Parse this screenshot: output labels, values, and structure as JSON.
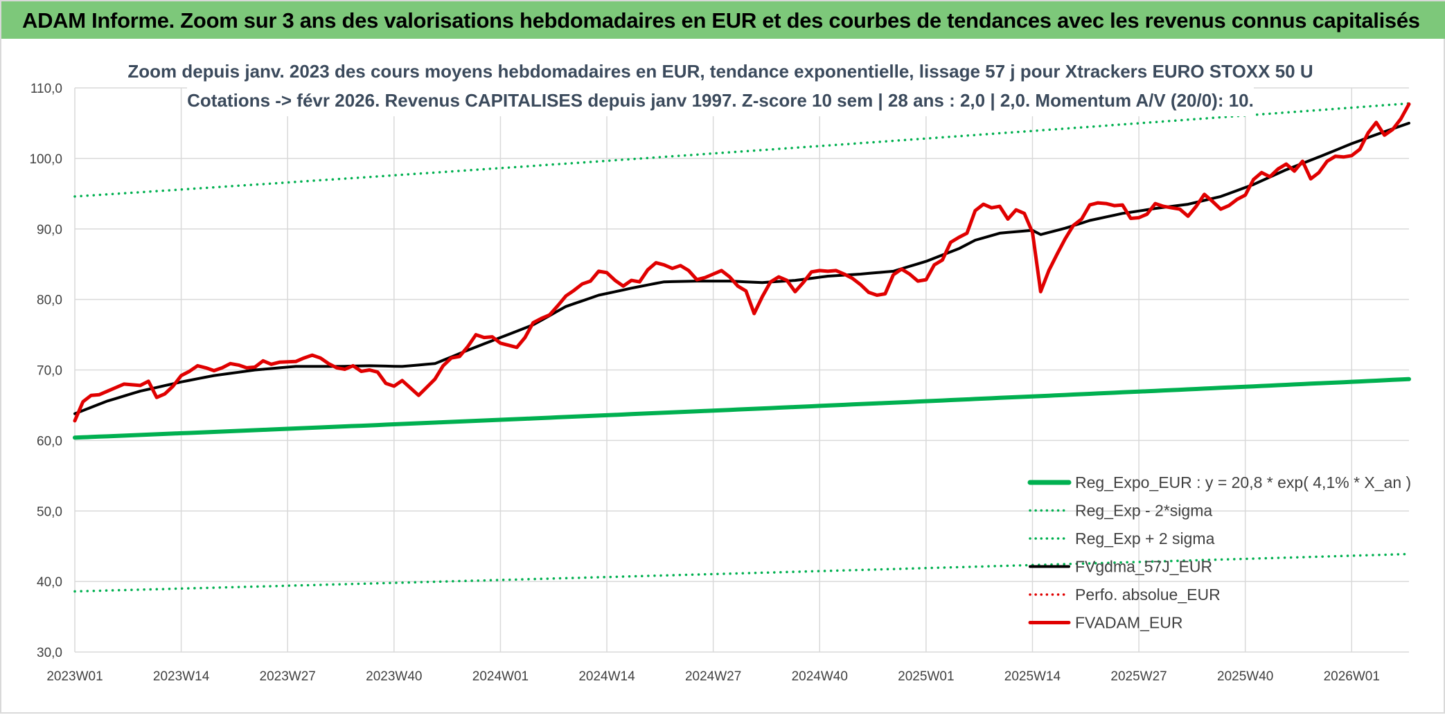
{
  "banner": {
    "title": "ADAM Informe. Zoom sur 3 ans des valorisations hebdomadaires en EUR et des courbes de tendances avec les revenus connus capitalisés"
  },
  "colors": {
    "banner_bg": "#7dc87a",
    "trend_green": "#00b050",
    "smooth_black": "#000000",
    "price_red": "#e00000",
    "grid": "#d9d9d9"
  },
  "chart_data": {
    "type": "line",
    "title_line1": "Zoom depuis janv. 2023 des cours moyens hebdomadaires en EUR, tendance exponentielle, lissage 57 j pour Xtrackers EURO STOXX 50 U",
    "title_line2": "Cotations -> févr 2026. Revenus CAPITALISES depuis janv 1997. Z-score 10 sem | 28 ans : 2,0 | 2,0. Momentum A/V (20/0): 10.",
    "ylim": [
      30,
      110
    ],
    "yticks": [
      30,
      40,
      50,
      60,
      70,
      80,
      90,
      100,
      110
    ],
    "ytick_labels": [
      "30,0",
      "40,0",
      "50,0",
      "60,0",
      "70,0",
      "80,0",
      "90,0",
      "100,0",
      "110,0"
    ],
    "x_count": 164,
    "xtick_index": [
      0,
      13,
      26,
      39,
      52,
      65,
      78,
      91,
      104,
      117,
      130,
      143,
      156
    ],
    "xtick_labels": [
      "2023W01",
      "2023W14",
      "2023W27",
      "2023W40",
      "2024W01",
      "2024W14",
      "2024W27",
      "2024W40",
      "2025W01",
      "2025W14",
      "2025W27",
      "2025W40",
      "2026W01"
    ],
    "legend_position": "bottom-right",
    "series": [
      {
        "name": "Reg_Expo_EUR : y = 20,8 * exp( 4,1% *  X_an )",
        "style": "thick",
        "color": "#00b050",
        "start": 60.4,
        "end": 68.7
      },
      {
        "name": "Reg_Exp - 2*sigma",
        "style": "dotted",
        "color": "#00b050",
        "start": 38.6,
        "end": 43.9
      },
      {
        "name": "Reg_Exp + 2 sigma",
        "style": "dotted",
        "color": "#00b050",
        "start": 94.6,
        "end": 107.8
      },
      {
        "name": "FVgdma_57J_EUR",
        "style": "solid",
        "color": "#000000",
        "anchors": [
          [
            0,
            63.8
          ],
          [
            4,
            65.6
          ],
          [
            8,
            67
          ],
          [
            13,
            68.3
          ],
          [
            17,
            69.2
          ],
          [
            22,
            70
          ],
          [
            27,
            70.5
          ],
          [
            32,
            70.5
          ],
          [
            36,
            70.6
          ],
          [
            40,
            70.5
          ],
          [
            44,
            70.9
          ],
          [
            48,
            72.8
          ],
          [
            52,
            74.6
          ],
          [
            56,
            76.4
          ],
          [
            60,
            79
          ],
          [
            64,
            80.6
          ],
          [
            68,
            81.6
          ],
          [
            72,
            82.5
          ],
          [
            76,
            82.6
          ],
          [
            80,
            82.6
          ],
          [
            84,
            82.4
          ],
          [
            88,
            82.7
          ],
          [
            92,
            83.3
          ],
          [
            96,
            83.6
          ],
          [
            100,
            84
          ],
          [
            104,
            85.4
          ],
          [
            108,
            87.2
          ],
          [
            110,
            88.4
          ],
          [
            113,
            89.4
          ],
          [
            117,
            89.8
          ],
          [
            118,
            89.2
          ],
          [
            121,
            90.1
          ],
          [
            124,
            91.2
          ],
          [
            128,
            92.2
          ],
          [
            132,
            92.9
          ],
          [
            136,
            93.5
          ],
          [
            140,
            94.6
          ],
          [
            144,
            96.3
          ],
          [
            148,
            98.4
          ],
          [
            152,
            100.2
          ],
          [
            156,
            102.1
          ],
          [
            160,
            103.8
          ],
          [
            163,
            105
          ]
        ]
      },
      {
        "name": "Perfo. absolue_EUR",
        "style": "dotted",
        "color": "#e00000",
        "anchors": []
      },
      {
        "name": "FVADAM_EUR",
        "style": "solid",
        "color": "#e00000",
        "anchors": [
          [
            0,
            62.8
          ],
          [
            1,
            65.5
          ],
          [
            2,
            66.4
          ],
          [
            3,
            66.5
          ],
          [
            4,
            67
          ],
          [
            6,
            68
          ],
          [
            8,
            67.8
          ],
          [
            9,
            68.4
          ],
          [
            10,
            66.1
          ],
          [
            11,
            66.6
          ],
          [
            12,
            67.7
          ],
          [
            13,
            69.2
          ],
          [
            14,
            69.8
          ],
          [
            15,
            70.6
          ],
          [
            16,
            70.3
          ],
          [
            17,
            69.9
          ],
          [
            18,
            70.3
          ],
          [
            19,
            70.9
          ],
          [
            20,
            70.7
          ],
          [
            21,
            70.3
          ],
          [
            22,
            70.4
          ],
          [
            23,
            71.3
          ],
          [
            24,
            70.8
          ],
          [
            25,
            71.1
          ],
          [
            27,
            71.2
          ],
          [
            28,
            71.7
          ],
          [
            29,
            72.1
          ],
          [
            30,
            71.7
          ],
          [
            31,
            70.9
          ],
          [
            32,
            70.3
          ],
          [
            33,
            70.1
          ],
          [
            34,
            70.6
          ],
          [
            35,
            69.8
          ],
          [
            36,
            70
          ],
          [
            37,
            69.7
          ],
          [
            38,
            68.1
          ],
          [
            39,
            67.7
          ],
          [
            40,
            68.5
          ],
          [
            42,
            66.4
          ],
          [
            44,
            68.7
          ],
          [
            45,
            70.6
          ],
          [
            46,
            71.7
          ],
          [
            47,
            71.9
          ],
          [
            48,
            73.3
          ],
          [
            49,
            75
          ],
          [
            50,
            74.6
          ],
          [
            51,
            74.7
          ],
          [
            52,
            73.8
          ],
          [
            54,
            73.2
          ],
          [
            55,
            74.6
          ],
          [
            56,
            76.7
          ],
          [
            57,
            77.3
          ],
          [
            58,
            77.8
          ],
          [
            59,
            79.1
          ],
          [
            60,
            80.5
          ],
          [
            61,
            81.3
          ],
          [
            62,
            82.2
          ],
          [
            63,
            82.6
          ],
          [
            64,
            84
          ],
          [
            65,
            83.8
          ],
          [
            66,
            82.7
          ],
          [
            67,
            81.9
          ],
          [
            68,
            82.7
          ],
          [
            69,
            82.5
          ],
          [
            70,
            84.2
          ],
          [
            71,
            85.2
          ],
          [
            72,
            84.9
          ],
          [
            73,
            84.4
          ],
          [
            74,
            84.8
          ],
          [
            75,
            84.1
          ],
          [
            76,
            82.8
          ],
          [
            77,
            83.1
          ],
          [
            78,
            83.6
          ],
          [
            79,
            84.1
          ],
          [
            80,
            83.2
          ],
          [
            81,
            81.9
          ],
          [
            82,
            81.2
          ],
          [
            83,
            78
          ],
          [
            84,
            80.4
          ],
          [
            85,
            82.5
          ],
          [
            86,
            83.2
          ],
          [
            87,
            82.7
          ],
          [
            88,
            81.1
          ],
          [
            89,
            82.4
          ],
          [
            90,
            83.9
          ],
          [
            91,
            84.1
          ],
          [
            92,
            84
          ],
          [
            93,
            84.1
          ],
          [
            94,
            83.6
          ],
          [
            95,
            83
          ],
          [
            96,
            82.1
          ],
          [
            97,
            81
          ],
          [
            98,
            80.6
          ],
          [
            99,
            80.8
          ],
          [
            100,
            83.5
          ],
          [
            101,
            84.3
          ],
          [
            102,
            83.6
          ],
          [
            103,
            82.6
          ],
          [
            104,
            82.8
          ],
          [
            105,
            84.9
          ],
          [
            106,
            85.6
          ],
          [
            107,
            88.1
          ],
          [
            108,
            88.8
          ],
          [
            109,
            89.4
          ],
          [
            110,
            92.6
          ],
          [
            111,
            93.5
          ],
          [
            112,
            93
          ],
          [
            113,
            93.2
          ],
          [
            114,
            91.4
          ],
          [
            115,
            92.7
          ],
          [
            116,
            92.2
          ],
          [
            117,
            89.5
          ],
          [
            118,
            81.1
          ],
          [
            119,
            84.1
          ],
          [
            120,
            86.4
          ],
          [
            121,
            88.6
          ],
          [
            122,
            90.5
          ],
          [
            123,
            91.4
          ],
          [
            124,
            93.4
          ],
          [
            125,
            93.7
          ],
          [
            126,
            93.6
          ],
          [
            127,
            93.3
          ],
          [
            128,
            93.4
          ],
          [
            129,
            91.5
          ],
          [
            130,
            91.6
          ],
          [
            131,
            92.1
          ],
          [
            132,
            93.6
          ],
          [
            133,
            93.2
          ],
          [
            134,
            93
          ],
          [
            135,
            92.8
          ],
          [
            136,
            91.8
          ],
          [
            137,
            93.2
          ],
          [
            138,
            94.9
          ],
          [
            139,
            93.9
          ],
          [
            140,
            92.8
          ],
          [
            141,
            93.3
          ],
          [
            142,
            94.2
          ],
          [
            143,
            94.8
          ],
          [
            144,
            97
          ],
          [
            145,
            98
          ],
          [
            146,
            97.4
          ],
          [
            147,
            98.5
          ],
          [
            148,
            99.2
          ],
          [
            149,
            98.2
          ],
          [
            150,
            99.6
          ],
          [
            151,
            97.1
          ],
          [
            152,
            98
          ],
          [
            153,
            99.6
          ],
          [
            154,
            100.3
          ],
          [
            155,
            100.2
          ],
          [
            156,
            100.4
          ],
          [
            157,
            101.3
          ],
          [
            158,
            103.6
          ],
          [
            159,
            105.1
          ],
          [
            160,
            103.3
          ],
          [
            161,
            104.1
          ],
          [
            162,
            105.6
          ],
          [
            163,
            107.7
          ]
        ]
      }
    ]
  }
}
